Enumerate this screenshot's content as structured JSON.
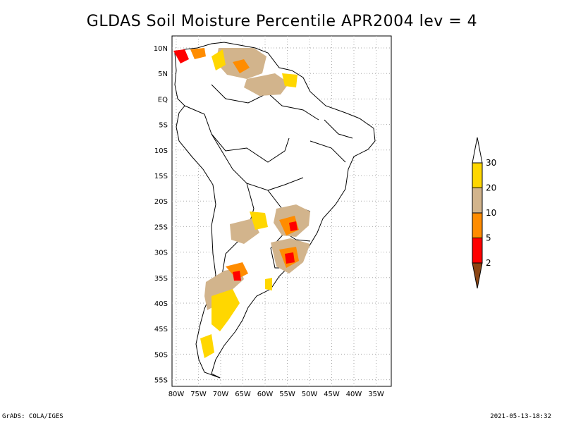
{
  "title": "GLDAS Soil Moisture Percentile APR2004 lev = 4",
  "footer": {
    "left": "GrADS: COLA/IGES",
    "right": "2021-05-13-18:32"
  },
  "map": {
    "lat_labels": [
      "10N",
      "5N",
      "EQ",
      "5S",
      "10S",
      "15S",
      "20S",
      "25S",
      "30S",
      "35S",
      "40S",
      "45S",
      "50S",
      "55S"
    ],
    "lon_labels": [
      "80W",
      "75W",
      "70W",
      "65W",
      "60W",
      "55W",
      "50W",
      "45W",
      "40W",
      "35W"
    ]
  },
  "colorbar": {
    "labels": [
      "30",
      "20",
      "10",
      "5",
      "2"
    ],
    "colors": [
      "#ffd700",
      "#d2b48c",
      "#ff8c00",
      "#ff0000",
      "#8b4513"
    ],
    "top_color": "#ffffff"
  }
}
